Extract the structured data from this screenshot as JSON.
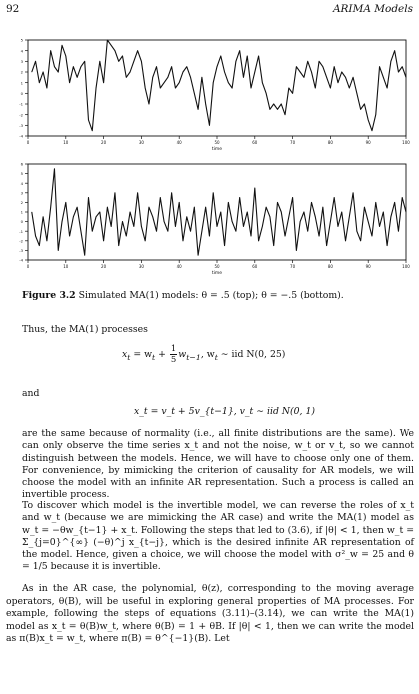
{
  "header": {
    "page_number": "92",
    "running_title": "ARIMA Models"
  },
  "chart_data": [
    {
      "type": "line",
      "xlabel": "time",
      "x": [
        1,
        2,
        3,
        4,
        5,
        6,
        7,
        8,
        9,
        10,
        11,
        12,
        13,
        14,
        15,
        16,
        17,
        18,
        19,
        20,
        21,
        22,
        23,
        24,
        25,
        26,
        27,
        28,
        29,
        30,
        31,
        32,
        33,
        34,
        35,
        36,
        37,
        38,
        39,
        40,
        41,
        42,
        43,
        44,
        45,
        46,
        47,
        48,
        49,
        50,
        51,
        52,
        53,
        54,
        55,
        56,
        57,
        58,
        59,
        60,
        61,
        62,
        63,
        64,
        65,
        66,
        67,
        68,
        69,
        70,
        71,
        72,
        73,
        74,
        75,
        76,
        77,
        78,
        79,
        80,
        81,
        82,
        83,
        84,
        85,
        86,
        87,
        88,
        89,
        90,
        91,
        92,
        93,
        94,
        95,
        96,
        97,
        98,
        99,
        100
      ],
      "values": [
        2.0,
        3.0,
        1.0,
        2.0,
        0.5,
        4.0,
        2.5,
        2.0,
        4.5,
        3.5,
        1.0,
        2.5,
        1.5,
        2.5,
        3.0,
        -2.5,
        -3.5,
        0.5,
        3.0,
        1.0,
        5.0,
        4.5,
        4.0,
        3.0,
        3.5,
        1.5,
        2.0,
        3.0,
        4.0,
        3.0,
        0.5,
        -1.0,
        1.5,
        2.5,
        0.5,
        1.0,
        1.5,
        2.5,
        0.5,
        1.0,
        2.0,
        2.5,
        1.5,
        0.0,
        -1.5,
        1.5,
        -1.0,
        -3.0,
        1.0,
        2.5,
        3.5,
        2.0,
        1.0,
        0.5,
        3.0,
        4.0,
        1.5,
        3.5,
        0.5,
        2.0,
        3.5,
        1.0,
        0.0,
        -1.5,
        -1.0,
        -1.5,
        -1.0,
        -2.0,
        0.5,
        0.0,
        2.5,
        2.0,
        1.5,
        3.0,
        2.0,
        0.5,
        3.0,
        2.5,
        1.5,
        0.5,
        2.5,
        1.0,
        2.0,
        1.5,
        0.5,
        1.5,
        0.0,
        -1.5,
        -1.0,
        -2.5,
        -3.5,
        -2.0,
        2.5,
        1.5,
        0.5,
        3.0,
        4.0,
        2.0,
        2.5,
        1.5
      ],
      "ylim": [
        -4,
        5
      ],
      "yticks": [
        "-4",
        "-3",
        "-2",
        "-1",
        "0",
        "1",
        "2",
        "3",
        "4",
        "5"
      ],
      "xticks": [
        "0",
        "10",
        "20",
        "30",
        "40",
        "50",
        "60",
        "70",
        "80",
        "90",
        "100"
      ]
    },
    {
      "type": "line",
      "xlabel": "time",
      "x": [
        1,
        2,
        3,
        4,
        5,
        6,
        7,
        8,
        9,
        10,
        11,
        12,
        13,
        14,
        15,
        16,
        17,
        18,
        19,
        20,
        21,
        22,
        23,
        24,
        25,
        26,
        27,
        28,
        29,
        30,
        31,
        32,
        33,
        34,
        35,
        36,
        37,
        38,
        39,
        40,
        41,
        42,
        43,
        44,
        45,
        46,
        47,
        48,
        49,
        50,
        51,
        52,
        53,
        54,
        55,
        56,
        57,
        58,
        59,
        60,
        61,
        62,
        63,
        64,
        65,
        66,
        67,
        68,
        69,
        70,
        71,
        72,
        73,
        74,
        75,
        76,
        77,
        78,
        79,
        80,
        81,
        82,
        83,
        84,
        85,
        86,
        87,
        88,
        89,
        90,
        91,
        92,
        93,
        94,
        95,
        96,
        97,
        98,
        99,
        100
      ],
      "values": [
        1.0,
        -1.5,
        -2.5,
        0.5,
        -2.0,
        1.5,
        5.5,
        -3.0,
        0.0,
        2.0,
        -1.5,
        0.5,
        1.5,
        -1.0,
        -3.5,
        2.5,
        -1.0,
        0.5,
        1.0,
        -2.0,
        1.5,
        -0.5,
        3.0,
        -2.5,
        0.0,
        -1.5,
        1.0,
        -0.5,
        3.0,
        -0.5,
        -2.0,
        1.5,
        0.5,
        -1.0,
        2.5,
        0.0,
        -1.0,
        3.0,
        -0.5,
        2.0,
        -2.0,
        0.5,
        -1.0,
        1.5,
        -3.5,
        -1.0,
        1.5,
        -1.5,
        3.0,
        -0.5,
        1.0,
        -2.5,
        2.0,
        0.0,
        -1.0,
        2.5,
        -0.5,
        1.0,
        -1.5,
        3.5,
        -2.0,
        -0.5,
        1.5,
        0.5,
        -2.5,
        2.0,
        1.0,
        -1.5,
        0.5,
        2.5,
        -3.0,
        0.0,
        1.0,
        -1.0,
        2.0,
        0.5,
        -1.5,
        1.5,
        -2.5,
        0.0,
        2.5,
        -0.5,
        1.0,
        -2.0,
        0.5,
        3.0,
        -1.0,
        -2.0,
        1.5,
        0.0,
        -1.5,
        2.0,
        -0.5,
        1.0,
        -2.5,
        0.5,
        2.0,
        -1.0,
        2.5,
        1.0
      ],
      "ylim": [
        -4,
        6
      ],
      "yticks": [
        "-4",
        "-3",
        "-2",
        "-1",
        "0",
        "1",
        "2",
        "3",
        "4",
        "5",
        "6"
      ],
      "xticks": [
        "0",
        "10",
        "20",
        "30",
        "40",
        "50",
        "60",
        "70",
        "80",
        "90",
        "100"
      ]
    }
  ],
  "caption": {
    "label": "Figure 3.2",
    "text": " Simulated MA(1) models: θ = .5 (top); θ = −.5 (bottom)."
  },
  "body": {
    "p1": "Thus, the MA(1) processes",
    "eq1": {
      "left": "x",
      "sub": "t",
      "mid": " = w",
      "frac_num": "1",
      "frac_den": "5",
      "rest": "w",
      "rest_sub": "t−1",
      "cond": ",    w",
      "cond_sub": "t",
      "dist": " ∼ iid  N(0, 25)"
    },
    "and": "and",
    "eq2": "x_t = v_t + 5v_{t−1},    v_t ∼ iid  N(0, 1)",
    "p2": "are the same because of normality (i.e., all finite distributions are the same). We can only observe the time series x_t and not the noise, w_t or v_t, so we cannot distinguish between the models. Hence, we will have to choose only one of them. For convenience, by mimicking the criterion of causality for AR models, we will choose the model with an infinite AR representation. Such a process is called an invertible process.",
    "p3": "To discover which model is the invertible model, we can reverse the roles of x_t and w_t (because we are mimicking the AR case) and write the MA(1) model as w_t = −θw_{t−1} + x_t. Following the steps that led to (3.6), if |θ| < 1, then w_t = Σ_{j=0}^{∞} (−θ)^j x_{t−j}, which is the desired infinite AR representation of the model. Hence, given a choice, we will choose the model with σ²_w = 25 and θ = 1/5 because it is invertible.",
    "p4": "As in the AR case, the polynomial, θ(z), corresponding to the moving average operators, θ(B), will be useful in exploring general properties of MA processes. For example, following the steps of equations (3.11)–(3.14), we can write the MA(1) model as x_t = θ(B)w_t, where θ(B) = 1 + θB. If |θ| < 1, then we can write the model as π(B)x_t = w_t, where π(B) = θ^{−1}(B). Let"
  }
}
